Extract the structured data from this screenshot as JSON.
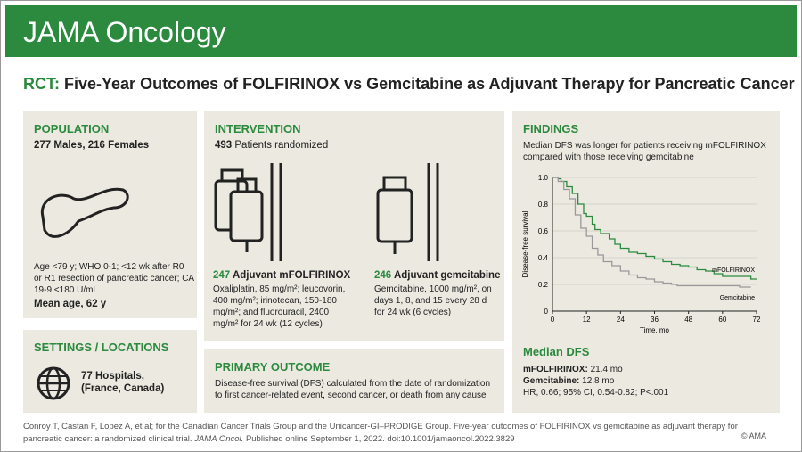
{
  "header": {
    "journal": "JAMA Oncology"
  },
  "title": {
    "prefix": "RCT:",
    "text": "Five-Year Outcomes of FOLFIRINOX vs Gemcitabine as Adjuvant Therapy for Pancreatic Cancer"
  },
  "population": {
    "heading": "POPULATION",
    "summary": "277 Males, 216 Females",
    "criteria": "Age <79 y; WHO 0-1; <12 wk after R0 or R1 resection of pancreatic cancer; CA 19-9 <180 U/mL",
    "mean_age": "Mean age, 62 y",
    "icon": "pancreas-icon"
  },
  "settings": {
    "heading": "SETTINGS / LOCATIONS",
    "line1": "77 Hospitals,",
    "line2": "(France, Canada)",
    "icon": "globe-icon"
  },
  "intervention": {
    "heading": "INTERVENTION",
    "n": "493",
    "n_label": "Patients randomized",
    "arms": [
      {
        "n": "247",
        "label": "Adjuvant mFOLFIRINOX",
        "detail": "Oxaliplatin, 85 mg/m²; leucovorin, 400 mg/m²; irinotecan, 150-180 mg/m²; and fluorouracil, 2400 mg/m² for 24 wk (12 cycles)",
        "icon": "iv-bags-icon"
      },
      {
        "n": "246",
        "label": "Adjuvant gemcitabine",
        "detail": "Gemcitabine, 1000 mg/m², on days 1, 8, and 15 every 28 d for 24 wk (6 cycles)",
        "icon": "iv-bag-icon"
      }
    ]
  },
  "primary_outcome": {
    "heading": "PRIMARY OUTCOME",
    "text": "Disease-free survival (DFS) calculated from the date of randomization to first cancer-related event, second cancer, or death from any cause"
  },
  "findings": {
    "heading": "FINDINGS",
    "text": "Median DFS was longer for patients receiving mFOLFIRINOX compared with those receiving gemcitabine",
    "median_heading": "Median DFS",
    "m1_label": "mFOLFIRINOX:",
    "m1_value": "21.4 mo",
    "m2_label": "Gemcitabine:",
    "m2_value": "12.8 mo",
    "stats": "HR, 0.66; 95% CI, 0.54-0.82; P<.001"
  },
  "chart_data": {
    "type": "line",
    "xlabel": "Time, mo",
    "ylabel": "Disease-free survival",
    "xlim": [
      0,
      72
    ],
    "ylim": [
      0,
      1
    ],
    "xticks": [
      "0",
      "12",
      "24",
      "36",
      "48",
      "60",
      "72"
    ],
    "yticks": [
      "0",
      "0.2",
      "0.4",
      "0.6",
      "0.8",
      "1.0"
    ],
    "grid": true,
    "series": [
      {
        "name": "mFOLFIRINOX",
        "color": "#2b8a3e",
        "x": [
          0,
          2,
          3,
          5,
          7,
          9,
          11,
          12,
          14,
          15,
          17,
          20,
          22,
          24,
          27,
          30,
          33,
          36,
          39,
          42,
          45,
          48,
          51,
          54,
          57,
          60,
          66,
          70,
          72
        ],
        "y": [
          1,
          0.99,
          0.97,
          0.93,
          0.88,
          0.8,
          0.73,
          0.71,
          0.65,
          0.61,
          0.58,
          0.54,
          0.5,
          0.47,
          0.44,
          0.43,
          0.41,
          0.39,
          0.37,
          0.35,
          0.34,
          0.33,
          0.31,
          0.3,
          0.28,
          0.26,
          0.26,
          0.24,
          0.24
        ]
      },
      {
        "name": "Gemcitabine",
        "color": "#999999",
        "x": [
          0,
          2,
          4,
          6,
          8,
          10,
          12,
          14,
          16,
          18,
          21,
          24,
          27,
          30,
          33,
          36,
          39,
          42,
          44,
          48,
          60,
          66,
          70
        ],
        "y": [
          1,
          0.97,
          0.91,
          0.84,
          0.72,
          0.62,
          0.56,
          0.47,
          0.42,
          0.37,
          0.34,
          0.3,
          0.27,
          0.25,
          0.24,
          0.22,
          0.21,
          0.2,
          0.19,
          0.19,
          0.19,
          0.18,
          0.18
        ]
      }
    ]
  },
  "footer": {
    "citation": "Conroy T, Castan F, Lopez A, et al; for the Canadian Cancer Trials Group and the Unicancer-GI–PRODIGE Group. Five-year outcomes of FOLFIRINOX vs gemcitabine as adjuvant therapy for pancreatic cancer: a randomized clinical trial.",
    "journal": "JAMA Oncol.",
    "rest": "Published online September 1, 2022. doi:10.1001/jamaoncol.2022.3829",
    "copyright": "© AMA"
  }
}
